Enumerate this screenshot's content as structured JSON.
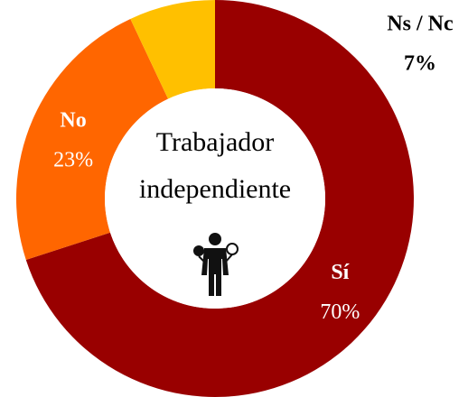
{
  "chart_data": {
    "type": "donut",
    "categories": [
      "Sí",
      "No",
      "Ns / Nc"
    ],
    "values": [
      70,
      23,
      7
    ],
    "value_labels": [
      "70%",
      "23%",
      "7%"
    ],
    "colors": [
      "#990000",
      "#ff6600",
      "#ffc000"
    ],
    "center_text": [
      "Trabajador",
      "independiente"
    ]
  }
}
